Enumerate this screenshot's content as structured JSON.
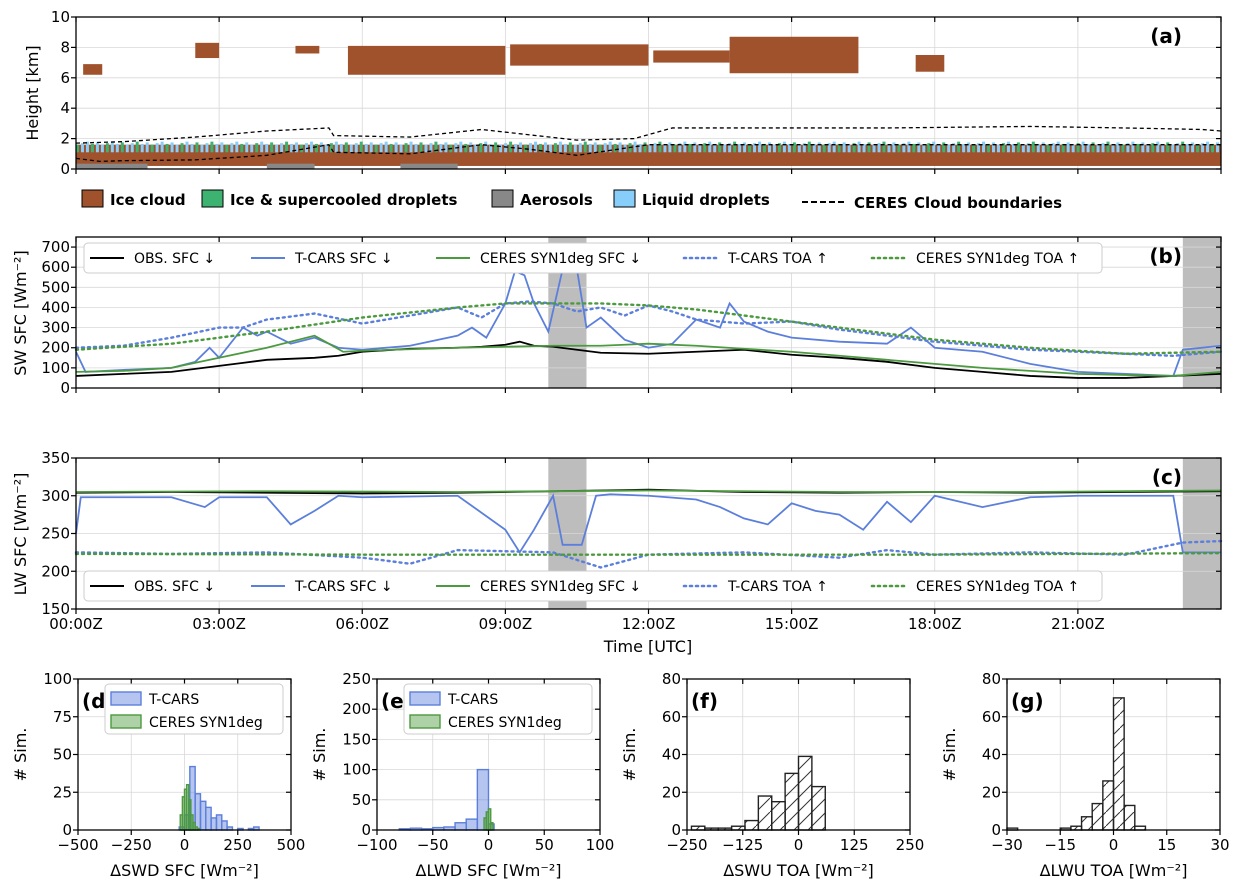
{
  "colors": {
    "ice": "#A0522D",
    "mixed": "#3CB371",
    "aerosol": "#888888",
    "liquid": "#87CEFA",
    "obs": "#000000",
    "tcars": "#5B7FDB",
    "ceres": "#4C9A3F",
    "shade": "#BDBDBD"
  },
  "chart_data": [
    {
      "id": "a",
      "type": "heatmap",
      "letter": "(a)",
      "ylabel": "Height [km]",
      "xlim": [
        0,
        24
      ],
      "ylim": [
        0,
        10
      ],
      "yticks": [
        0,
        2,
        4,
        6,
        8,
        10
      ],
      "legend": [
        {
          "label": "Ice cloud",
          "kind": "ice"
        },
        {
          "label": "Ice & supercooled droplets",
          "kind": "mixed"
        },
        {
          "label": "Aerosols",
          "kind": "aerosol"
        },
        {
          "label": "Liquid droplets",
          "kind": "liquid"
        },
        {
          "label": "CERES",
          "kind": "dash"
        },
        {
          "label": "Cloud boundaries",
          "kind": "none"
        }
      ],
      "cirrus_layers": [
        {
          "x0": 0.15,
          "x1": 0.55,
          "base": 6.2,
          "top": 6.9
        },
        {
          "x0": 2.5,
          "x1": 3.0,
          "base": 7.3,
          "top": 8.3
        },
        {
          "x0": 4.6,
          "x1": 5.1,
          "base": 7.6,
          "top": 8.1
        },
        {
          "x0": 5.7,
          "x1": 9.0,
          "base": 6.2,
          "top": 8.1
        },
        {
          "x0": 9.1,
          "x1": 12.0,
          "base": 6.8,
          "top": 8.2
        },
        {
          "x0": 12.1,
          "x1": 13.7,
          "base": 7.0,
          "top": 7.8
        },
        {
          "x0": 13.7,
          "x1": 16.4,
          "base": 6.3,
          "top": 8.7
        },
        {
          "x0": 17.6,
          "x1": 18.2,
          "base": 6.4,
          "top": 7.5
        }
      ],
      "ceres_top": {
        "x": [
          0,
          1,
          2.5,
          4,
          5.3,
          5.4,
          7,
          8.5,
          10.5,
          11.7,
          12.5,
          14,
          17,
          20,
          22,
          23.6,
          24
        ],
        "y": [
          1.7,
          1.8,
          2.1,
          2.5,
          2.7,
          2.2,
          2.1,
          2.6,
          1.9,
          2.0,
          2.7,
          2.7,
          2.7,
          2.8,
          2.7,
          2.6,
          2.5
        ]
      },
      "ceres_base": {
        "x": [
          0,
          0.5,
          1,
          2.5,
          4,
          5.3,
          5.4,
          7,
          8.5,
          9.5,
          10.5,
          12,
          24
        ],
        "y": [
          0.7,
          0.5,
          0.55,
          0.6,
          0.9,
          1.6,
          1.1,
          1.0,
          1.6,
          1.3,
          0.9,
          1.6,
          1.6
        ]
      }
    },
    {
      "id": "b",
      "type": "line",
      "letter": "(b)",
      "ylabel": "SW SFC [Wm⁻²]",
      "xlim": [
        0,
        24
      ],
      "ylim": [
        0,
        750
      ],
      "yticks": [
        0,
        100,
        200,
        300,
        400,
        500,
        600,
        700
      ],
      "shaded": [
        [
          9.9,
          10.7
        ],
        [
          23.2,
          24
        ]
      ],
      "series": [
        {
          "name": "OBS. SFC ↓",
          "color": "obs",
          "style": "solid",
          "x": [
            0,
            1,
            2,
            2.5,
            3,
            3.5,
            4,
            5,
            5.5,
            6,
            7,
            8,
            8.5,
            9,
            9.3,
            9.6,
            10,
            11,
            12,
            13,
            14,
            15,
            16,
            17,
            18,
            19,
            20,
            21,
            22,
            23,
            24
          ],
          "y": [
            60,
            70,
            80,
            95,
            110,
            125,
            140,
            150,
            160,
            180,
            195,
            200,
            205,
            215,
            230,
            210,
            205,
            175,
            170,
            180,
            190,
            165,
            150,
            130,
            100,
            80,
            60,
            50,
            50,
            60,
            70
          ]
        },
        {
          "name": "T-CARS SFC ↓",
          "color": "tcars",
          "style": "solid",
          "x": [
            0,
            0.2,
            1,
            2,
            2.5,
            2.8,
            3,
            3.5,
            3.8,
            4,
            4.5,
            5,
            5.5,
            6,
            7,
            8,
            8.3,
            8.6,
            9,
            9.2,
            9.4,
            9.6,
            9.9,
            10.2,
            10.5,
            10.7,
            11,
            11.5,
            12,
            12.5,
            13,
            13.5,
            13.7,
            14,
            14.5,
            15,
            16,
            17,
            17.5,
            18,
            19,
            20,
            21,
            22,
            23,
            23.2,
            24
          ],
          "y": [
            180,
            80,
            90,
            100,
            130,
            200,
            150,
            300,
            260,
            280,
            220,
            250,
            200,
            190,
            210,
            260,
            300,
            250,
            420,
            580,
            560,
            420,
            280,
            590,
            590,
            300,
            350,
            240,
            200,
            220,
            340,
            300,
            420,
            330,
            280,
            250,
            230,
            220,
            300,
            200,
            180,
            120,
            80,
            70,
            60,
            190,
            210
          ]
        },
        {
          "name": "CERES SYN1deg SFC ↓",
          "color": "ceres",
          "style": "solid",
          "x": [
            0,
            1,
            2,
            3,
            4,
            5,
            5.3,
            5.6,
            6,
            8,
            9,
            10,
            11,
            12,
            13,
            14,
            15,
            16,
            17,
            18,
            19,
            20,
            21,
            22,
            23,
            24
          ],
          "y": [
            80,
            85,
            100,
            150,
            200,
            260,
            220,
            180,
            185,
            200,
            205,
            210,
            210,
            220,
            210,
            195,
            180,
            160,
            140,
            120,
            100,
            85,
            70,
            65,
            60,
            80
          ]
        },
        {
          "name": "T-CARS TOA ↑",
          "color": "tcars",
          "style": "dot",
          "x": [
            0,
            1,
            2,
            3,
            3.5,
            4,
            5,
            6,
            7,
            8,
            8.5,
            9,
            9.5,
            10,
            10.5,
            11,
            11.5,
            12,
            12.5,
            13,
            14,
            15,
            16,
            17,
            18,
            19,
            20,
            21,
            22,
            23,
            24
          ],
          "y": [
            200,
            210,
            250,
            300,
            300,
            340,
            370,
            320,
            360,
            400,
            350,
            420,
            430,
            420,
            380,
            400,
            360,
            410,
            380,
            340,
            320,
            330,
            290,
            260,
            230,
            210,
            190,
            180,
            170,
            160,
            180
          ]
        },
        {
          "name": "CERES SYN1deg TOA ↑",
          "color": "ceres",
          "style": "dot",
          "x": [
            0,
            2,
            4,
            6,
            8,
            9,
            10,
            11,
            12,
            13,
            14,
            15,
            16,
            18,
            20,
            22,
            24
          ],
          "y": [
            190,
            220,
            280,
            350,
            400,
            420,
            420,
            420,
            410,
            390,
            360,
            330,
            300,
            240,
            200,
            170,
            180
          ]
        }
      ]
    },
    {
      "id": "c",
      "type": "line",
      "letter": "(c)",
      "ylabel": "LW SFC [Wm⁻²]",
      "xlabel": "Time [UTC]",
      "xlim": [
        0,
        24
      ],
      "ylim": [
        150,
        350
      ],
      "yticks": [
        150,
        200,
        250,
        300,
        350
      ],
      "xticks": [
        0,
        3,
        6,
        9,
        12,
        15,
        18,
        21
      ],
      "xticklabels": [
        "00:00Z",
        "03:00Z",
        "06:00Z",
        "09:00Z",
        "12:00Z",
        "15:00Z",
        "18:00Z",
        "21:00Z"
      ],
      "shaded": [
        [
          9.9,
          10.7
        ],
        [
          23.2,
          24
        ]
      ],
      "series": [
        {
          "name": "OBS. SFC ↓",
          "color": "obs",
          "style": "solid",
          "x": [
            0,
            2,
            4,
            6,
            8,
            10,
            12,
            14,
            16,
            18,
            20,
            22,
            24
          ],
          "y": [
            304,
            305,
            304,
            303,
            304,
            306,
            308,
            305,
            304,
            305,
            304,
            305,
            306
          ]
        },
        {
          "name": "T-CARS SFC ↓",
          "color": "tcars",
          "style": "solid",
          "x": [
            0,
            0.1,
            0.5,
            2,
            2.7,
            3,
            4,
            4.5,
            5,
            5.5,
            6,
            8,
            9,
            9.3,
            9.6,
            10,
            10.2,
            10.6,
            10.9,
            11.2,
            12,
            13,
            13.5,
            14,
            14.5,
            15,
            15.5,
            16,
            16.5,
            17,
            17.5,
            18,
            19,
            20,
            21,
            22,
            23,
            23.2,
            24
          ],
          "y": [
            250,
            298,
            298,
            298,
            285,
            298,
            298,
            262,
            280,
            300,
            298,
            300,
            255,
            225,
            255,
            300,
            235,
            235,
            300,
            302,
            300,
            295,
            285,
            270,
            262,
            290,
            280,
            275,
            255,
            292,
            265,
            300,
            285,
            298,
            300,
            300,
            300,
            225,
            225
          ]
        },
        {
          "name": "CERES SYN1deg SFC ↓",
          "color": "ceres",
          "style": "solid",
          "x": [
            0,
            4,
            8,
            12,
            16,
            20,
            24
          ],
          "y": [
            305,
            306,
            305,
            307,
            305,
            305,
            307
          ]
        },
        {
          "name": "T-CARS TOA ↑",
          "color": "tcars",
          "style": "dot",
          "x": [
            0,
            2,
            4,
            6,
            7,
            8,
            10,
            11,
            12,
            14,
            16,
            17,
            18,
            20,
            22,
            23.2,
            24
          ],
          "y": [
            225,
            223,
            225,
            218,
            210,
            228,
            225,
            205,
            222,
            225,
            218,
            228,
            222,
            225,
            222,
            238,
            240
          ]
        },
        {
          "name": "CERES SYN1deg TOA ↑",
          "color": "ceres",
          "style": "dot",
          "x": [
            0,
            6,
            12,
            18,
            24
          ],
          "y": [
            223,
            222,
            222,
            222,
            224
          ]
        }
      ]
    },
    {
      "id": "d",
      "type": "bar",
      "letter": "(d)",
      "ylabel": "# Sim.",
      "xlabel": "ΔSWD SFC [Wm⁻²]",
      "xlim": [
        -500,
        500
      ],
      "ylim": [
        0,
        100
      ],
      "xticks": [
        -500,
        -250,
        0,
        250,
        500
      ],
      "yticks": [
        0,
        25,
        50,
        75,
        100
      ],
      "legend": [
        "T-CARS",
        "CERES SYN1deg"
      ],
      "series": [
        {
          "name": "T-CARS",
          "color": "tcars",
          "edges": [
            -25,
            0,
            25,
            50,
            75,
            100,
            125,
            150,
            175,
            200,
            225,
            250,
            275,
            300,
            325,
            350
          ],
          "counts": [
            2,
            10,
            42,
            24,
            19,
            15,
            8,
            10,
            6,
            2,
            0,
            1,
            0,
            1,
            2
          ]
        },
        {
          "name": "CERES SYN1deg",
          "color": "ceres",
          "edges": [
            -20,
            -10,
            0,
            10,
            20,
            30,
            40,
            50,
            60,
            70
          ],
          "counts": [
            10,
            22,
            27,
            30,
            20,
            10,
            5,
            2,
            1
          ]
        }
      ]
    },
    {
      "id": "e",
      "type": "bar",
      "letter": "(e)",
      "ylabel": "# Sim.",
      "xlabel": "ΔLWD SFC [Wm⁻²]",
      "xlim": [
        -100,
        100
      ],
      "ylim": [
        0,
        250
      ],
      "xticks": [
        -100,
        -50,
        0,
        50,
        100
      ],
      "yticks": [
        0,
        50,
        100,
        150,
        200,
        250
      ],
      "legend": [
        "T-CARS",
        "CERES SYN1deg"
      ],
      "series": [
        {
          "name": "T-CARS",
          "color": "tcars",
          "edges": [
            -80,
            -70,
            -60,
            -50,
            -40,
            -30,
            -20,
            -10,
            0,
            5
          ],
          "counts": [
            2,
            3,
            2,
            4,
            5,
            12,
            18,
            100,
            10
          ]
        },
        {
          "name": "CERES SYN1deg",
          "color": "ceres",
          "edges": [
            -4,
            -2,
            0,
            2,
            4
          ],
          "counts": [
            20,
            30,
            35,
            12
          ]
        }
      ]
    },
    {
      "id": "f",
      "type": "bar",
      "letter": "(f)",
      "ylabel": "# Sim.",
      "xlabel": "ΔSWU TOA [Wm⁻²]",
      "xlim": [
        -250,
        250
      ],
      "ylim": [
        0,
        80
      ],
      "xticks": [
        -250,
        -125,
        0,
        125,
        250
      ],
      "yticks": [
        0,
        20,
        40,
        60,
        80
      ],
      "series": [
        {
          "name": "",
          "color": "hatch",
          "edges": [
            -240,
            -210,
            -180,
            -150,
            -120,
            -90,
            -60,
            -30,
            0,
            30,
            60
          ],
          "counts": [
            2,
            1,
            1,
            2,
            5,
            18,
            15,
            30,
            39,
            23
          ]
        }
      ]
    },
    {
      "id": "g",
      "type": "bar",
      "letter": "(g)",
      "ylabel": "# Sim.",
      "xlabel": "ΔLWU TOA [Wm⁻²]",
      "xlim": [
        -30,
        30
      ],
      "ylim": [
        0,
        80
      ],
      "xticks": [
        -30,
        -15,
        0,
        15,
        30
      ],
      "yticks": [
        0,
        20,
        40,
        60,
        80
      ],
      "series": [
        {
          "name": "",
          "color": "hatch",
          "edges": [
            -30,
            -27,
            -24,
            -21,
            -18,
            -15,
            -12,
            -9,
            -6,
            -3,
            0,
            3,
            6,
            9
          ],
          "counts": [
            1,
            0,
            0,
            0,
            0,
            1,
            2,
            7,
            14,
            26,
            70,
            13,
            2
          ]
        }
      ]
    }
  ]
}
